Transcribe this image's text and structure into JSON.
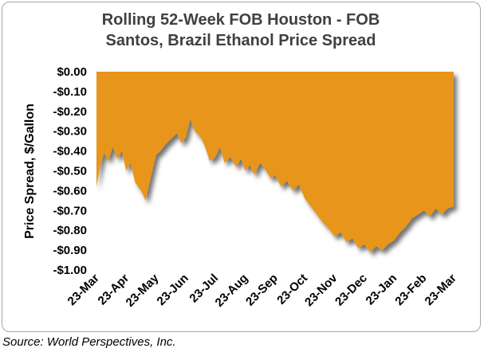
{
  "chart_data": {
    "type": "area",
    "title": [
      "Rolling 52-Week FOB Houston - FOB",
      "Santos, Brazil Ethanol Price Spread"
    ],
    "ylabel": "Price Spread, $/Gallon",
    "xlabel": "",
    "ylim": [
      -1.0,
      0.0
    ],
    "yticks": [
      0.0,
      -0.1,
      -0.2,
      -0.3,
      -0.4,
      -0.5,
      -0.6,
      -0.7,
      -0.8,
      -0.9,
      -1.0
    ],
    "ytick_labels": [
      "$0.00",
      "-$0.10",
      "-$0.20",
      "-$0.30",
      "-$0.40",
      "-$0.50",
      "-$0.60",
      "-$0.70",
      "-$0.80",
      "-$0.90",
      "-$1.00"
    ],
    "categories": [
      "23-Mar",
      "23-Apr",
      "23-May",
      "23-Jun",
      "23-Jul",
      "23-Aug",
      "23-Sep",
      "23-Oct",
      "23-Nov",
      "23-Dec",
      "23-Jan",
      "23-Feb",
      "23-Mar"
    ],
    "x_range": [
      0,
      12
    ],
    "grid": false,
    "fill_color": "#E8951E",
    "series": [
      {
        "x": [
          0,
          0.12,
          0.25,
          0.4,
          0.55,
          0.7,
          0.85,
          1.0,
          1.15,
          1.3,
          1.5,
          1.65,
          1.8,
          2.0,
          2.15,
          2.3,
          2.5,
          2.7,
          2.85,
          3.0,
          3.15,
          3.3,
          3.5,
          3.65,
          3.8,
          4.0,
          4.15,
          4.3,
          4.5,
          4.7,
          4.85,
          5.0,
          5.15,
          5.3,
          5.5,
          5.7,
          5.85,
          6.0,
          6.2,
          6.4,
          6.6,
          6.8,
          7.0,
          7.2,
          7.4,
          7.6,
          7.8,
          8.0,
          8.2,
          8.4,
          8.6,
          8.8,
          9.0,
          9.2,
          9.4,
          9.6,
          9.8,
          10.0,
          10.2,
          10.4,
          10.6,
          10.8,
          11.0,
          11.2,
          11.4,
          11.6,
          11.8,
          12.0
        ],
        "values": [
          -0.58,
          -0.48,
          -0.41,
          -0.45,
          -0.38,
          -0.44,
          -0.4,
          -0.5,
          -0.46,
          -0.56,
          -0.6,
          -0.65,
          -0.55,
          -0.42,
          -0.4,
          -0.37,
          -0.34,
          -0.31,
          -0.36,
          -0.33,
          -0.24,
          -0.3,
          -0.33,
          -0.38,
          -0.45,
          -0.43,
          -0.38,
          -0.46,
          -0.43,
          -0.48,
          -0.44,
          -0.5,
          -0.47,
          -0.52,
          -0.46,
          -0.5,
          -0.54,
          -0.52,
          -0.58,
          -0.55,
          -0.6,
          -0.57,
          -0.64,
          -0.68,
          -0.72,
          -0.76,
          -0.79,
          -0.83,
          -0.81,
          -0.86,
          -0.84,
          -0.89,
          -0.87,
          -0.91,
          -0.88,
          -0.9,
          -0.87,
          -0.85,
          -0.81,
          -0.78,
          -0.74,
          -0.72,
          -0.7,
          -0.73,
          -0.69,
          -0.72,
          -0.69,
          -0.68
        ]
      }
    ]
  },
  "source": "Source: World Perspectives, Inc."
}
